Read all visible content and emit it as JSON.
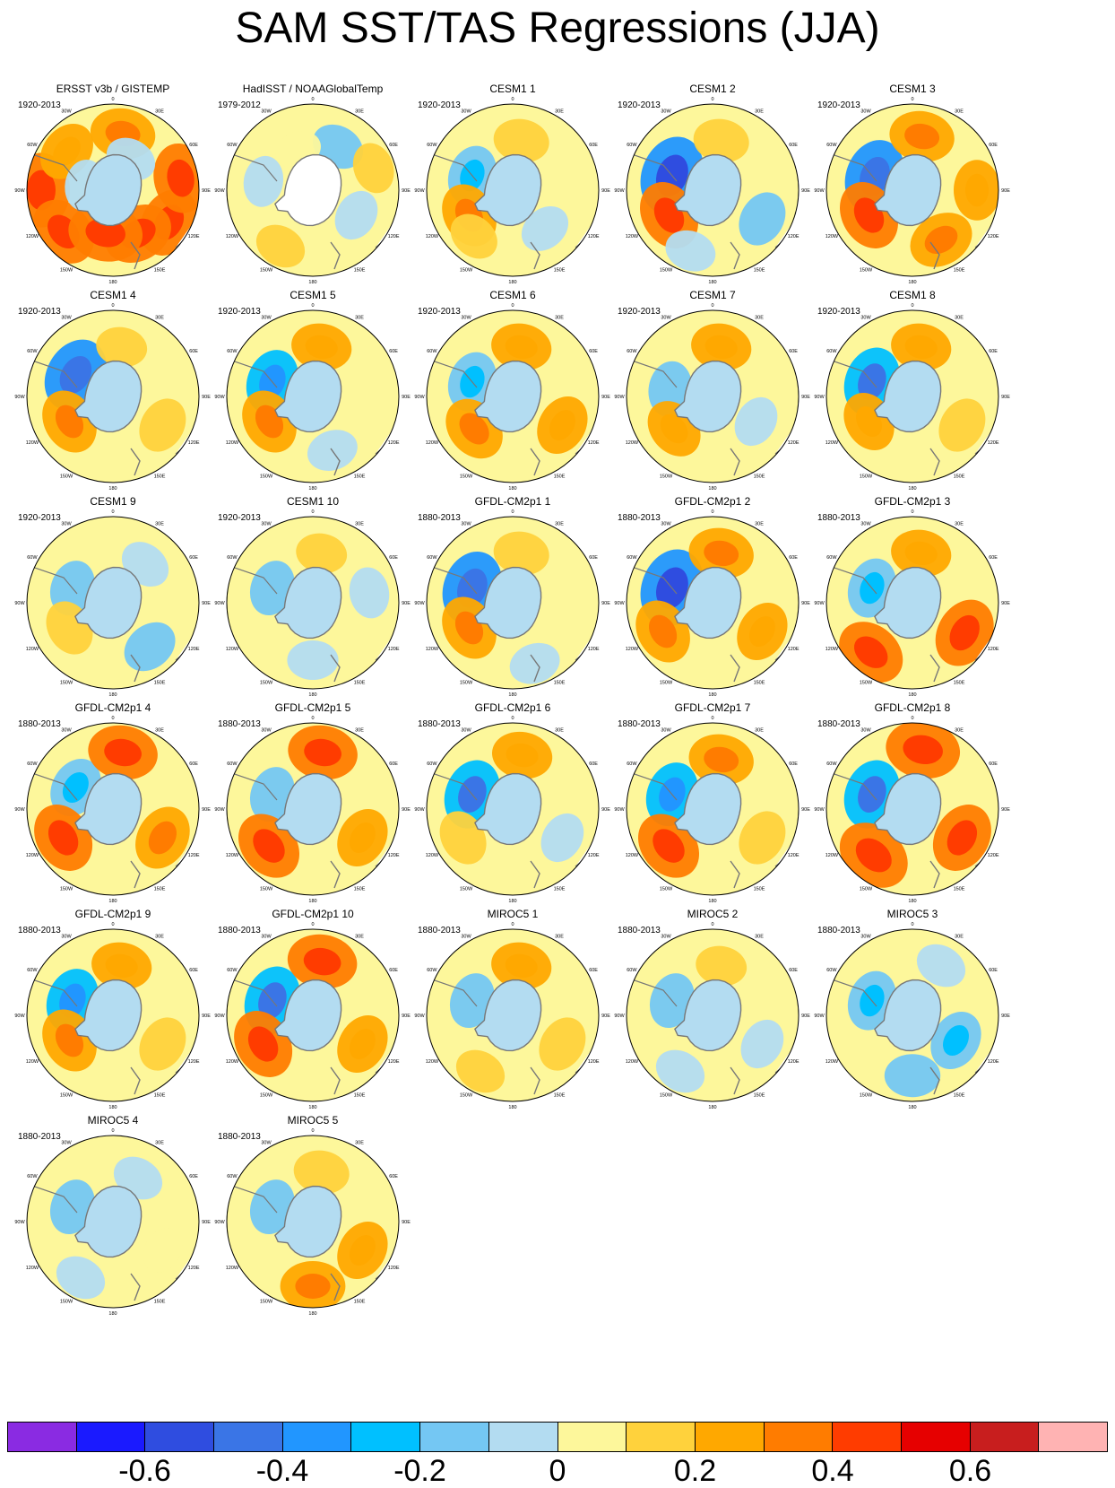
{
  "title": "SAM SST/TAS Regressions (JJA)",
  "map_ticks": [
    "0",
    "30E",
    "60E",
    "90E",
    "120E",
    "150E",
    "180",
    "150W",
    "120W",
    "90W",
    "60W",
    "30W"
  ],
  "palette": {
    "ocean_base": "#fdf79b",
    "land": "#ffffff",
    "coast": "#777777",
    "colors": [
      "#8a2be2",
      "#1a1aff",
      "#2f4de0",
      "#3a75e6",
      "#2196ff",
      "#00c0ff",
      "#74c7f3",
      "#b3dcf1",
      "#fdf79b",
      "#ffd23c",
      "#ffa800",
      "#ff7c00",
      "#ff3c00",
      "#e60000",
      "#c81e1e",
      "#ffb3b3"
    ]
  },
  "chart_data": {
    "type": "heatmap",
    "projection": "south-polar-stereographic",
    "variable": "SST/TAS regression on SAM index (JJA)",
    "colorbar": {
      "levels": [
        -0.7,
        -0.6,
        -0.5,
        -0.4,
        -0.3,
        -0.2,
        -0.1,
        0,
        0.1,
        0.2,
        0.3,
        0.4,
        0.5,
        0.6,
        0.7
      ],
      "tick_labels": [
        "-0.6",
        "-0.4",
        "-0.2",
        "0",
        "0.2",
        "0.4",
        "0.6"
      ],
      "tick_values": [
        -0.6,
        -0.4,
        -0.2,
        0,
        0.2,
        0.4,
        0.6
      ]
    },
    "panels": [
      {
        "title": "ERSST v3b / GISTEMP",
        "period": "1920-2013",
        "antarctic_mask": false,
        "patches": [
          [
            -90,
            -40,
            0.35
          ],
          [
            -50,
            -45,
            0.3
          ],
          [
            60,
            -45,
            0.3
          ],
          [
            100,
            -42,
            0.3
          ],
          [
            -130,
            -48,
            0.2
          ],
          [
            170,
            -50,
            0.25
          ],
          [
            30,
            -55,
            0.3
          ],
          [
            -10,
            -60,
            0.35
          ],
          [
            -100,
            -70,
            -0.1
          ],
          [
            150,
            -65,
            -0.1
          ]
        ]
      },
      {
        "title": "HadISST / NOAAGlobalTemp",
        "period": "1979-2012",
        "antarctic_mask": true,
        "patches": [
          [
            -100,
            -55,
            -0.1
          ],
          [
            60,
            -55,
            -0.1
          ],
          [
            150,
            -55,
            -0.12
          ],
          [
            -30,
            -45,
            0.1
          ],
          [
            110,
            -45,
            0.1
          ],
          [
            -160,
            -60,
            0.05
          ]
        ]
      },
      {
        "title": "CESM1 1",
        "period": "1920-2013",
        "antarctic_mask": false,
        "patches": [
          [
            -110,
            -60,
            -0.2
          ],
          [
            -60,
            -55,
            0.25
          ],
          [
            40,
            -55,
            -0.1
          ],
          [
            170,
            -55,
            0.15
          ],
          [
            -40,
            -48,
            0.1
          ]
        ]
      },
      {
        "title": "CESM1 2",
        "period": "1920-2013",
        "antarctic_mask": false,
        "patches": [
          [
            -110,
            -60,
            -0.4
          ],
          [
            -60,
            -55,
            0.3
          ],
          [
            60,
            -50,
            -0.15
          ],
          [
            170,
            -55,
            0.15
          ],
          [
            -20,
            -45,
            -0.1
          ]
        ]
      },
      {
        "title": "CESM1 3",
        "period": "1920-2013",
        "antarctic_mask": false,
        "patches": [
          [
            -110,
            -62,
            -0.35
          ],
          [
            -60,
            -55,
            0.3
          ],
          [
            30,
            -50,
            0.25
          ],
          [
            170,
            -52,
            0.25
          ],
          [
            90,
            -45,
            0.2
          ]
        ]
      },
      {
        "title": "CESM1 4",
        "period": "1920-2013",
        "antarctic_mask": false,
        "patches": [
          [
            -120,
            -60,
            -0.35
          ],
          [
            -60,
            -55,
            0.25
          ],
          [
            60,
            -50,
            0.15
          ],
          [
            170,
            -55,
            0.1
          ]
        ]
      },
      {
        "title": "CESM1 5",
        "period": "1920-2013",
        "antarctic_mask": false,
        "patches": [
          [
            -110,
            -60,
            -0.25
          ],
          [
            -60,
            -55,
            0.25
          ],
          [
            20,
            -50,
            -0.1
          ],
          [
            170,
            -55,
            0.2
          ]
        ]
      },
      {
        "title": "CESM1 6",
        "period": "1920-2013",
        "antarctic_mask": false,
        "patches": [
          [
            -110,
            -60,
            -0.2
          ],
          [
            -50,
            -55,
            0.25
          ],
          [
            60,
            -50,
            0.2
          ],
          [
            170,
            -55,
            0.2
          ]
        ]
      },
      {
        "title": "CESM1 7",
        "period": "1920-2013",
        "antarctic_mask": false,
        "patches": [
          [
            -100,
            -60,
            -0.15
          ],
          [
            -50,
            -55,
            0.2
          ],
          [
            60,
            -55,
            -0.1
          ],
          [
            170,
            -55,
            0.2
          ]
        ]
      },
      {
        "title": "CESM1 8",
        "period": "1920-2013",
        "antarctic_mask": false,
        "patches": [
          [
            -110,
            -60,
            -0.3
          ],
          [
            -60,
            -55,
            0.2
          ],
          [
            60,
            -50,
            0.15
          ],
          [
            170,
            -55,
            0.2
          ]
        ]
      },
      {
        "title": "CESM1 9",
        "period": "1920-2013",
        "antarctic_mask": false,
        "patches": [
          [
            -110,
            -60,
            -0.15
          ],
          [
            -60,
            -55,
            0.15
          ],
          [
            40,
            -50,
            -0.15
          ],
          [
            140,
            -55,
            -0.1
          ]
        ]
      },
      {
        "title": "CESM1 10",
        "period": "1920-2013",
        "antarctic_mask": false,
        "patches": [
          [
            -110,
            -60,
            -0.15
          ],
          [
            0,
            -50,
            -0.1
          ],
          [
            100,
            -50,
            -0.1
          ],
          [
            170,
            -55,
            0.1
          ]
        ]
      },
      {
        "title": "GFDL-CM2p1 1",
        "period": "1880-2013",
        "antarctic_mask": false,
        "patches": [
          [
            -110,
            -60,
            -0.35
          ],
          [
            -60,
            -55,
            0.25
          ],
          [
            20,
            -45,
            -0.1
          ],
          [
            170,
            -55,
            0.15
          ]
        ]
      },
      {
        "title": "GFDL-CM2p1 2",
        "period": "1880-2013",
        "antarctic_mask": false,
        "patches": [
          [
            -110,
            -60,
            -0.4
          ],
          [
            -60,
            -50,
            0.25
          ],
          [
            60,
            -50,
            0.2
          ],
          [
            170,
            -55,
            0.25
          ]
        ]
      },
      {
        "title": "GFDL-CM2p1 3",
        "period": "1880-2013",
        "antarctic_mask": false,
        "patches": [
          [
            -110,
            -60,
            -0.2
          ],
          [
            -40,
            -45,
            0.3
          ],
          [
            60,
            -48,
            0.3
          ],
          [
            170,
            -55,
            0.2
          ]
        ]
      },
      {
        "title": "GFDL-CM2p1 4",
        "period": "1880-2013",
        "antarctic_mask": false,
        "patches": [
          [
            -120,
            -60,
            -0.2
          ],
          [
            -60,
            -50,
            0.3
          ],
          [
            60,
            -50,
            0.25
          ],
          [
            170,
            -50,
            0.3
          ]
        ]
      },
      {
        "title": "GFDL-CM2p1 5",
        "period": "1880-2013",
        "antarctic_mask": false,
        "patches": [
          [
            -110,
            -60,
            -0.15
          ],
          [
            -50,
            -50,
            0.3
          ],
          [
            60,
            -50,
            0.2
          ],
          [
            170,
            -50,
            0.3
          ]
        ]
      },
      {
        "title": "GFDL-CM2p1 6",
        "period": "1880-2013",
        "antarctic_mask": false,
        "patches": [
          [
            -110,
            -60,
            -0.3
          ],
          [
            -60,
            -50,
            0.15
          ],
          [
            60,
            -50,
            -0.1
          ],
          [
            170,
            -52,
            0.2
          ]
        ]
      },
      {
        "title": "GFDL-CM2p1 7",
        "period": "1880-2013",
        "antarctic_mask": false,
        "patches": [
          [
            -110,
            -60,
            -0.25
          ],
          [
            -50,
            -50,
            0.3
          ],
          [
            60,
            -50,
            0.15
          ],
          [
            170,
            -55,
            0.25
          ]
        ]
      },
      {
        "title": "GFDL-CM2p1 8",
        "period": "1880-2013",
        "antarctic_mask": false,
        "patches": [
          [
            -110,
            -60,
            -0.3
          ],
          [
            -40,
            -48,
            0.35
          ],
          [
            60,
            -50,
            0.3
          ],
          [
            170,
            -48,
            0.35
          ]
        ]
      },
      {
        "title": "GFDL-CM2p1 9",
        "period": "1880-2013",
        "antarctic_mask": false,
        "patches": [
          [
            -110,
            -60,
            -0.25
          ],
          [
            -60,
            -55,
            0.25
          ],
          [
            60,
            -50,
            0.15
          ],
          [
            170,
            -55,
            0.2
          ]
        ]
      },
      {
        "title": "GFDL-CM2p1 10",
        "period": "1880-2013",
        "antarctic_mask": false,
        "patches": [
          [
            -110,
            -60,
            -0.3
          ],
          [
            -60,
            -50,
            0.3
          ],
          [
            60,
            -50,
            0.2
          ],
          [
            170,
            -52,
            0.3
          ]
        ]
      },
      {
        "title": "MIROC5 1",
        "period": "1880-2013",
        "antarctic_mask": false,
        "patches": [
          [
            -110,
            -60,
            -0.15
          ],
          [
            -30,
            -45,
            0.1
          ],
          [
            60,
            -50,
            0.15
          ],
          [
            170,
            -55,
            0.2
          ]
        ]
      },
      {
        "title": "MIROC5 2",
        "period": "1880-2013",
        "antarctic_mask": false,
        "patches": [
          [
            -110,
            -60,
            -0.15
          ],
          [
            -30,
            -45,
            -0.1
          ],
          [
            60,
            -50,
            -0.1
          ],
          [
            170,
            -55,
            0.1
          ]
        ]
      },
      {
        "title": "MIROC5 3",
        "period": "1880-2013",
        "antarctic_mask": false,
        "patches": [
          [
            -110,
            -60,
            -0.2
          ],
          [
            0,
            -48,
            -0.15
          ],
          [
            60,
            -55,
            -0.2
          ],
          [
            150,
            -50,
            -0.1
          ]
        ]
      },
      {
        "title": "MIROC5 4",
        "period": "1880-2013",
        "antarctic_mask": false,
        "patches": [
          [
            -110,
            -60,
            -0.15
          ],
          [
            -30,
            -45,
            -0.1
          ],
          [
            60,
            -50,
            0.05
          ],
          [
            150,
            -55,
            -0.1
          ]
        ]
      },
      {
        "title": "MIROC5 5",
        "period": "1880-2013",
        "antarctic_mask": false,
        "patches": [
          [
            -110,
            -60,
            -0.15
          ],
          [
            0,
            -45,
            0.25
          ],
          [
            60,
            -50,
            0.2
          ],
          [
            170,
            -55,
            0.15
          ]
        ]
      }
    ]
  }
}
